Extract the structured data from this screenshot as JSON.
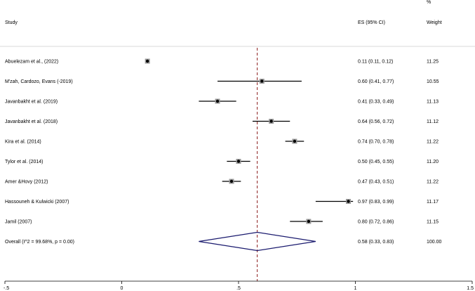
{
  "chart_data": {
    "type": "forest",
    "headers": {
      "study": "Study",
      "es": "ES (95% CI)",
      "weight_top": "%",
      "weight": "Weight"
    },
    "xlim": [
      -0.5,
      1.5
    ],
    "xticks": [
      -0.5,
      0,
      0.5,
      1,
      1.5
    ],
    "xtick_labels": [
      "-.5",
      "0",
      ".5",
      "1",
      "1.5"
    ],
    "reference_line": 0.58,
    "studies": [
      {
        "label": "Abuelezam et al.,  (2022)",
        "es": 0.11,
        "lo": 0.11,
        "hi": 0.12,
        "es_text": "0.11 (0.11, 0.12)",
        "weight": "11.25"
      },
      {
        "label": "M'zah, Cardozo, Evans (-2019)",
        "es": 0.6,
        "lo": 0.41,
        "hi": 0.77,
        "es_text": "0.60 (0.41, 0.77)",
        "weight": "10.55"
      },
      {
        "label": "Javanbakht et al. (2019)",
        "es": 0.41,
        "lo": 0.33,
        "hi": 0.49,
        "es_text": "0.41 (0.33, 0.49)",
        "weight": "11.13"
      },
      {
        "label": "Javanbakht et al. (2018)",
        "es": 0.64,
        "lo": 0.56,
        "hi": 0.72,
        "es_text": "0.64 (0.56, 0.72)",
        "weight": "11.12"
      },
      {
        "label": "Kira et al. (2014)",
        "es": 0.74,
        "lo": 0.7,
        "hi": 0.78,
        "es_text": "0.74 (0.70, 0.78)",
        "weight": "11.22"
      },
      {
        "label": "Tylor et al. (2014)",
        "es": 0.5,
        "lo": 0.45,
        "hi": 0.55,
        "es_text": "0.50 (0.45, 0.55)",
        "weight": "11.20"
      },
      {
        "label": "Amer &Hovy (2012)",
        "es": 0.47,
        "lo": 0.43,
        "hi": 0.51,
        "es_text": "0.47 (0.43, 0.51)",
        "weight": "11.22"
      },
      {
        "label": "Hassouneh &  Kulwicki (2007)",
        "es": 0.97,
        "lo": 0.83,
        "hi": 0.99,
        "es_text": "0.97 (0.83, 0.99)",
        "weight": "11.17"
      },
      {
        "label": "Jamil (2007)",
        "es": 0.8,
        "lo": 0.72,
        "hi": 0.86,
        "es_text": "0.80 (0.72, 0.86)",
        "weight": "11.15"
      }
    ],
    "overall": {
      "label": "Overall  (I^2 = 99.68%, p = 0.00)",
      "es": 0.58,
      "lo": 0.33,
      "hi": 0.83,
      "es_text": "0.58 (0.33, 0.83)",
      "weight": "100.00"
    },
    "colors": {
      "diamond": "#1a1a6e",
      "reference": "#8b1a1a",
      "marker": "#000000",
      "axis": "#000000",
      "divider": "#cccccc"
    }
  }
}
